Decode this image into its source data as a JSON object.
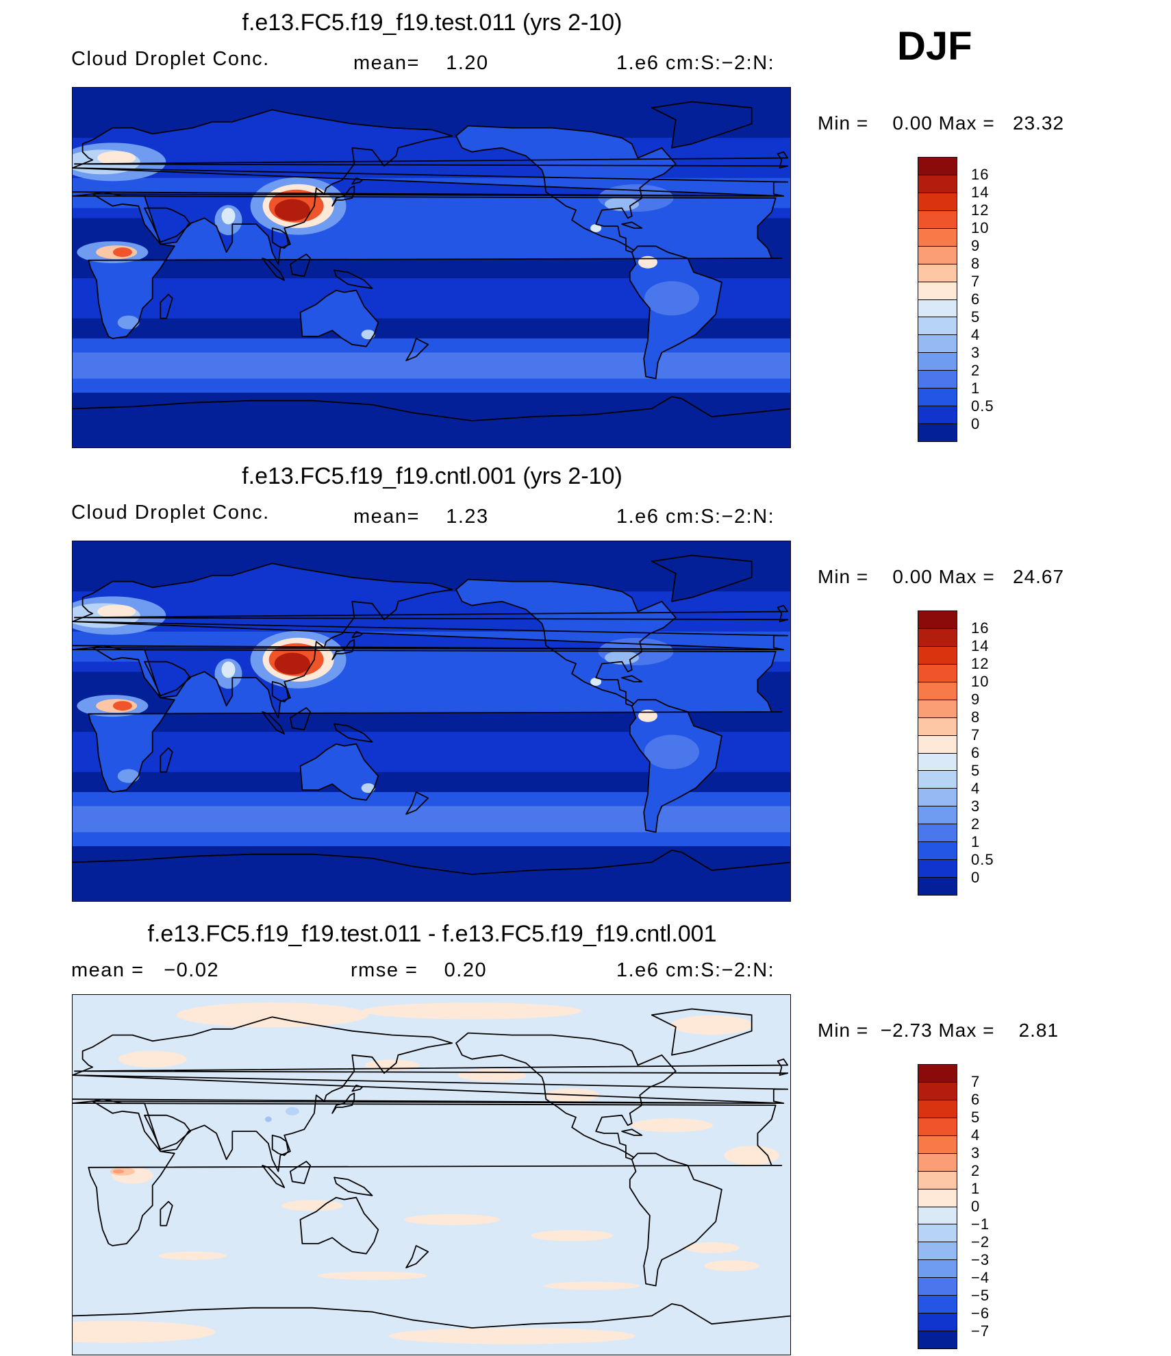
{
  "season": "DJF",
  "panels": [
    {
      "title": "f.e13.FC5.f19_f19.test.011 (yrs 2-10)",
      "left": "Cloud Droplet Conc.",
      "mid": "mean=    1.20",
      "right": "1.e6 cm:S:−2:N:",
      "minmax": "Min =    0.00 Max =   23.32",
      "legend_labels": [
        "16",
        "14",
        "12",
        "10",
        "9",
        "8",
        "7",
        "6",
        "5",
        "4",
        "3",
        "2",
        "1",
        "0.5",
        "0"
      ],
      "colors": [
        "#8b0a0a",
        "#b31d0e",
        "#d7340f",
        "#f0542a",
        "#f87a49",
        "#fb9e76",
        "#fdc7a6",
        "#fee9d9",
        "#d9e9f8",
        "#b7d3f5",
        "#94b9f3",
        "#6f9bf0",
        "#4a78ec",
        "#2456e6",
        "#0f35ce",
        "#042099"
      ],
      "map_type": "absolute"
    },
    {
      "title": "f.e13.FC5.f19_f19.cntl.001 (yrs 2-10)",
      "left": "Cloud Droplet Conc.",
      "mid": "mean=    1.23",
      "right": "1.e6 cm:S:−2:N:",
      "minmax": "Min =    0.00 Max =   24.67",
      "legend_labels": [
        "16",
        "14",
        "12",
        "10",
        "9",
        "8",
        "7",
        "6",
        "5",
        "4",
        "3",
        "2",
        "1",
        "0.5",
        "0"
      ],
      "colors": [
        "#8b0a0a",
        "#b31d0e",
        "#d7340f",
        "#f0542a",
        "#f87a49",
        "#fb9e76",
        "#fdc7a6",
        "#fee9d9",
        "#d9e9f8",
        "#b7d3f5",
        "#94b9f3",
        "#6f9bf0",
        "#4a78ec",
        "#2456e6",
        "#0f35ce",
        "#042099"
      ],
      "map_type": "absolute"
    },
    {
      "title": "f.e13.FC5.f19_f19.test.011 - f.e13.FC5.f19_f19.cntl.001",
      "left": "mean =   −0.02",
      "mid": "rmse =    0.20",
      "right": "1.e6 cm:S:−2:N:",
      "minmax": "Min =  −2.73 Max =    2.81",
      "legend_labels": [
        "7",
        "6",
        "5",
        "4",
        "3",
        "2",
        "1",
        "0",
        "−1",
        "−2",
        "−3",
        "−4",
        "−5",
        "−6",
        "−7"
      ],
      "colors": [
        "#8b0a0a",
        "#b31d0e",
        "#d7340f",
        "#f0542a",
        "#f87a49",
        "#fb9e76",
        "#fdc7a6",
        "#fee9d9",
        "#d9e9f8",
        "#b7d3f5",
        "#94b9f3",
        "#6f9bf0",
        "#4a78ec",
        "#2456e6",
        "#0f35ce",
        "#042099"
      ],
      "map_type": "difference"
    }
  ]
}
